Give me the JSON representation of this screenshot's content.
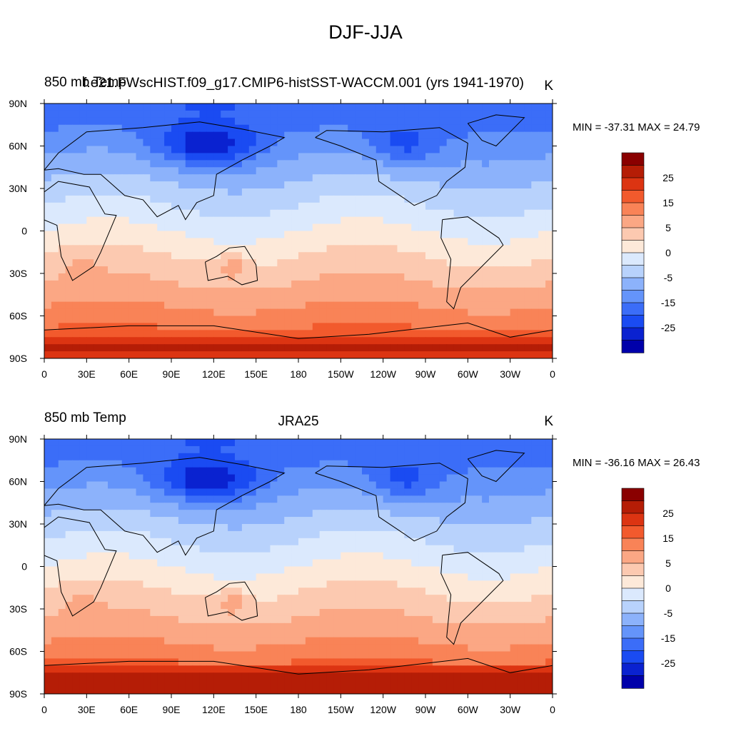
{
  "figure_title": "DJF-JJA",
  "colors": {
    "ocean_mask": "#ffffff",
    "coast": "#000000",
    "levels_fill": [
      "#000078",
      "#0000aa",
      "#0a22d0",
      "#1a4bf2",
      "#3b6df8",
      "#6494fa",
      "#8cb2fb",
      "#b8d2fc",
      "#dbe9fd",
      "#fde9d9",
      "#fcc9b0",
      "#fba784",
      "#f98357",
      "#f25a2d",
      "#dc3412",
      "#b51d06",
      "#8a0000"
    ]
  },
  "chart_data": [
    {
      "type": "heatmap",
      "panel": "top",
      "left_title": "850 mb Temp",
      "center_title": "f.e21.FWscHIST.f09_g17.CMIP6-histSST-WACCM.001 (yrs 1941-1970)",
      "units": "K",
      "min_label": "MIN = -37.31",
      "max_label": "MAX =  24.79",
      "min": -37.31,
      "max": 24.79,
      "xlim": [
        0,
        360
      ],
      "ylim": [
        -90,
        90
      ],
      "xticks": [
        "0",
        "30E",
        "60E",
        "90E",
        "120E",
        "150E",
        "180",
        "150W",
        "120W",
        "90W",
        "60W",
        "30W",
        "0"
      ],
      "yticks": [
        "90N",
        "60N",
        "30N",
        "0",
        "30S",
        "60S",
        "90S"
      ],
      "colorbar_levels": [
        -35,
        -30,
        -25,
        -20,
        -15,
        -10,
        -5,
        0,
        5,
        10,
        15,
        20,
        25,
        30
      ],
      "colorbar_labels": [
        "25",
        "15",
        "5",
        "0",
        "-5",
        "-15",
        "-25"
      ]
    },
    {
      "type": "heatmap",
      "panel": "bottom",
      "left_title": "850 mb Temp",
      "center_title": "JRA25",
      "units": "K",
      "min_label": "MIN = -36.16",
      "max_label": "MAX =  26.43",
      "min": -36.16,
      "max": 26.43,
      "xlim": [
        0,
        360
      ],
      "ylim": [
        -90,
        90
      ],
      "xticks": [
        "0",
        "30E",
        "60E",
        "90E",
        "120E",
        "150E",
        "180",
        "150W",
        "120W",
        "90W",
        "60W",
        "30W",
        "0"
      ],
      "yticks": [
        "90N",
        "60N",
        "30N",
        "0",
        "30S",
        "60S",
        "90S"
      ],
      "colorbar_levels": [
        -35,
        -30,
        -25,
        -20,
        -15,
        -10,
        -5,
        0,
        5,
        10,
        15,
        20,
        25,
        30
      ],
      "colorbar_labels": [
        "25",
        "15",
        "5",
        "0",
        "-5",
        "-15",
        "-25"
      ]
    }
  ]
}
